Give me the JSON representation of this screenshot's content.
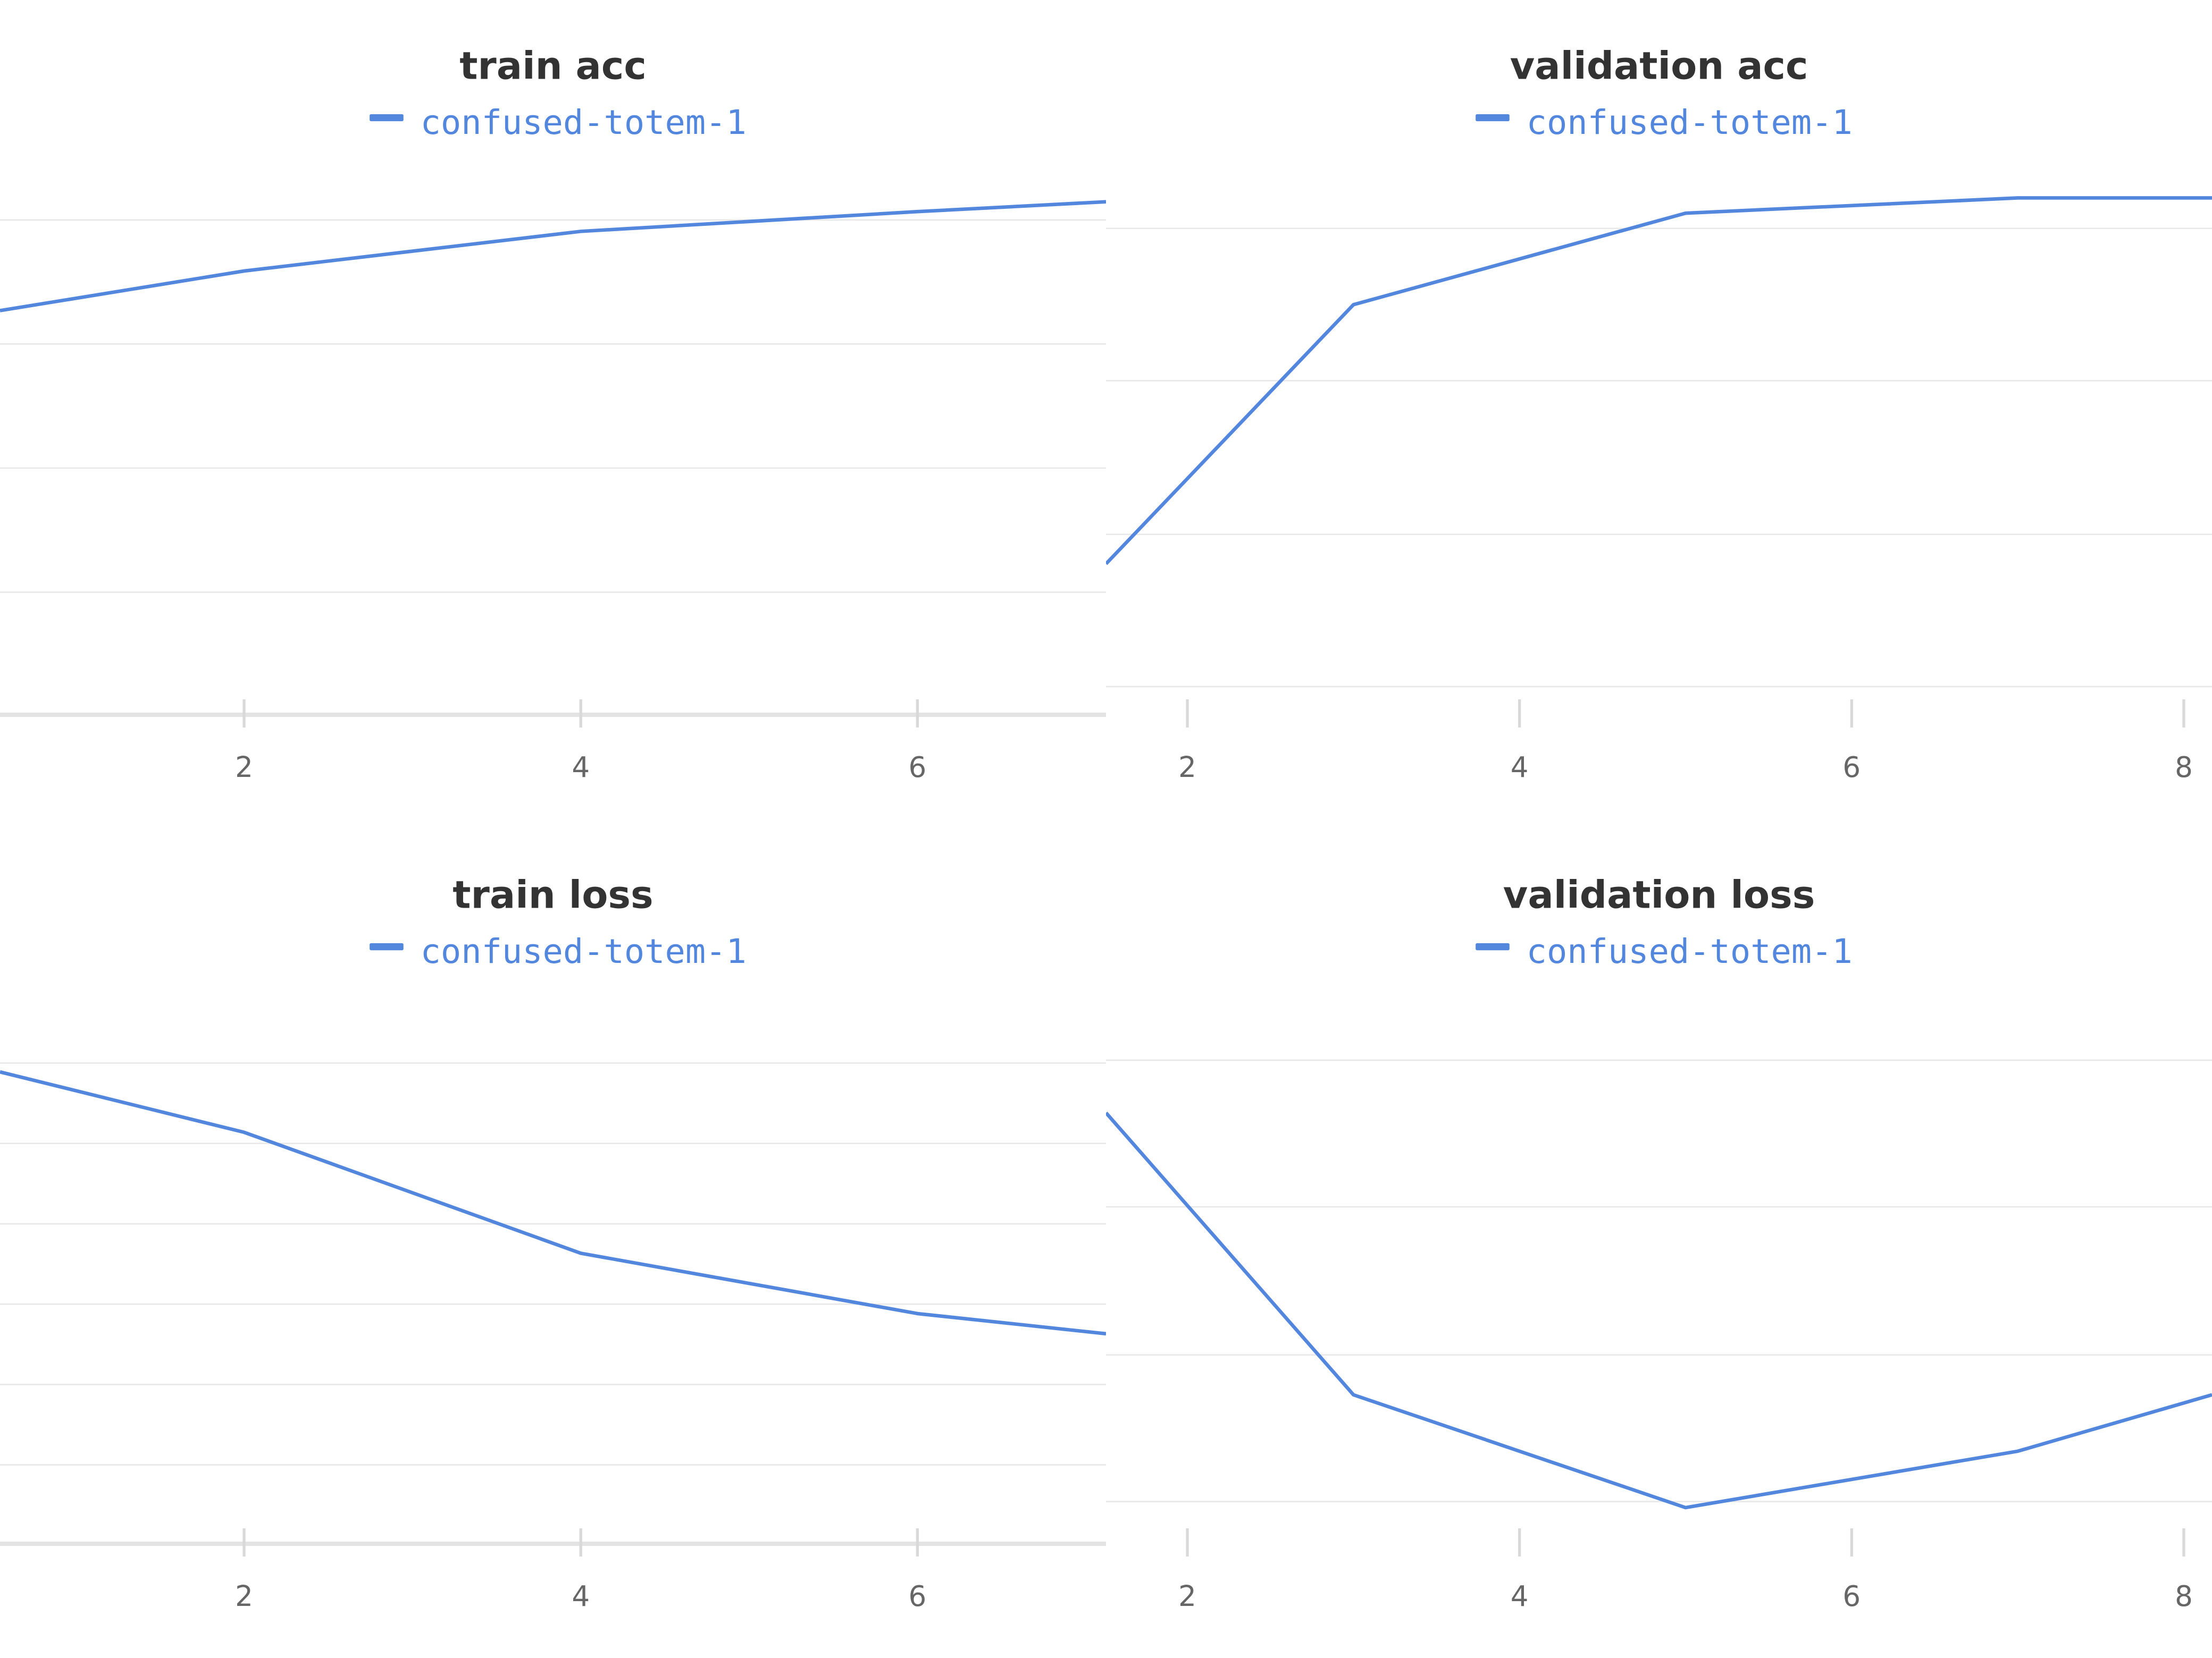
{
  "colors": {
    "series": "#5387dd",
    "grid": "#e8e8e8",
    "axis": "#e3e3e3",
    "title": "#333333",
    "tick": "#666666"
  },
  "chart_data": [
    {
      "type": "line",
      "title": "train acc",
      "xlabel": "",
      "ylabel": "",
      "x_ticks": [
        2,
        4,
        6
      ],
      "xlim": [
        0.55,
        7.12
      ],
      "ylim": [
        0.4,
        0.97
      ],
      "grid": true,
      "legend_position": "top-center",
      "series": [
        {
          "name": "confused-totem-1",
          "x": [
            0.55,
            2,
            4,
            6,
            7.12
          ],
          "y": [
            0.81,
            0.85,
            0.89,
            0.91,
            0.92
          ]
        }
      ]
    },
    {
      "type": "line",
      "title": "validation acc",
      "xlabel": "",
      "ylabel": "",
      "x_ticks": [
        2,
        4,
        6,
        8
      ],
      "xlim": [
        1.51,
        8.17
      ],
      "ylim": [
        0.62,
        0.99
      ],
      "grid": true,
      "legend_position": "top-center",
      "series": [
        {
          "name": "confused-totem-1",
          "x": [
            1.51,
            3,
            5,
            7,
            8.17
          ],
          "y": [
            0.72,
            0.89,
            0.95,
            0.96,
            0.96
          ]
        }
      ]
    },
    {
      "type": "line",
      "title": "train loss",
      "xlabel": "",
      "ylabel": "",
      "x_ticks": [
        2,
        4,
        6
      ],
      "xlim": [
        0.55,
        7.12
      ],
      "ylim": [
        0.18,
        0.74
      ],
      "grid": true,
      "legend_position": "top-center",
      "series": [
        {
          "name": "confused-totem-1",
          "x": [
            0.55,
            2,
            4,
            6,
            7.12
          ],
          "y": [
            0.65,
            0.59,
            0.47,
            0.41,
            0.39
          ]
        }
      ]
    },
    {
      "type": "line",
      "title": "validation loss",
      "xlabel": "",
      "ylabel": "",
      "x_ticks": [
        2,
        4,
        6,
        8
      ],
      "xlim": [
        1.51,
        8.17
      ],
      "ylim": [
        0.17,
        0.47
      ],
      "grid": true,
      "legend_position": "top-center",
      "series": [
        {
          "name": "confused-totem-1",
          "x": [
            1.51,
            3,
            5,
            7,
            8.17
          ],
          "y": [
            0.4,
            0.25,
            0.19,
            0.22,
            0.25
          ]
        }
      ]
    }
  ]
}
